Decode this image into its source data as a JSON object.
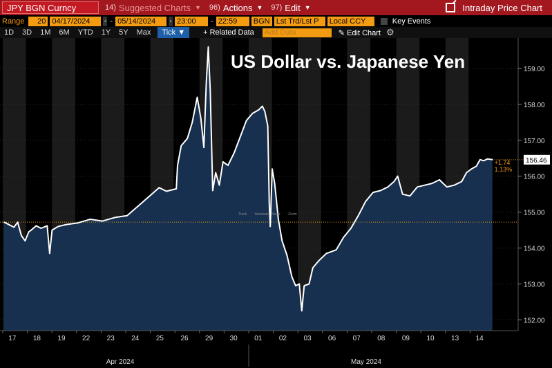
{
  "topbar": {
    "ticker": "JPY BGN Curncy",
    "suggested_num": "14)",
    "suggested": "Suggested Charts",
    "actions_num": "96)",
    "actions": "Actions",
    "edit_num": "97)",
    "edit": "Edit",
    "right_title": "Intraday Price Chart"
  },
  "controls": {
    "range_label": "Range",
    "range_value": "20",
    "start_date": "04/17/2024",
    "end_date": "05/14/2024",
    "start_time": "23:00",
    "end_time": "22:59",
    "source": "BGN",
    "price_type": "Lst Trd/Lst P",
    "currency": "Local CCY",
    "key_events": "Key Events"
  },
  "zoombar": {
    "buttons": [
      "1D",
      "3D",
      "1M",
      "6M",
      "YTD",
      "1Y",
      "5Y",
      "Max"
    ],
    "tick": "Tick ▼",
    "related": "+ Related Data",
    "add_data_placeholder": "Add Data",
    "edit_chart": "Edit Chart"
  },
  "chart_data": {
    "type": "area",
    "title": "US Dollar vs. Japanese Yen",
    "y_ticks": [
      "159.00",
      "158.00",
      "157.00",
      "156.00",
      "155.00",
      "154.00",
      "153.00",
      "152.00"
    ],
    "ylim": [
      151.7,
      159.75
    ],
    "x_labels": [
      "17",
      "18",
      "19",
      "22",
      "23",
      "24",
      "25",
      "26",
      "29",
      "30",
      "01",
      "02",
      "03",
      "06",
      "07",
      "08",
      "09",
      "10",
      "13",
      "14"
    ],
    "month_labels": [
      "Apr 2024",
      "May 2024"
    ],
    "last_value": "156.46",
    "change": "+1.74",
    "change_pct": "1.13%",
    "reference_line": 154.72,
    "tool_labels": [
      "Track",
      "Annotate",
      "News",
      "Zoom"
    ],
    "colors": {
      "line": "#ffffff",
      "fill": "#17304f",
      "shade": "#1b1b1b",
      "accent": "#f39c12",
      "topbar": "#a3171f"
    },
    "series": [
      {
        "x": 0,
        "y": 154.72
      },
      {
        "x": 0.2,
        "y": 154.65
      },
      {
        "x": 0.4,
        "y": 154.58
      },
      {
        "x": 0.55,
        "y": 154.72
      },
      {
        "x": 0.7,
        "y": 154.35
      },
      {
        "x": 0.85,
        "y": 154.2
      },
      {
        "x": 1.0,
        "y": 154.45
      },
      {
        "x": 1.1,
        "y": 154.5
      },
      {
        "x": 1.3,
        "y": 154.62
      },
      {
        "x": 1.5,
        "y": 154.55
      },
      {
        "x": 1.75,
        "y": 154.62
      },
      {
        "x": 1.85,
        "y": 153.85
      },
      {
        "x": 1.95,
        "y": 154.5
      },
      {
        "x": 2.2,
        "y": 154.6
      },
      {
        "x": 2.5,
        "y": 154.65
      },
      {
        "x": 3.0,
        "y": 154.7
      },
      {
        "x": 3.5,
        "y": 154.8
      },
      {
        "x": 4.0,
        "y": 154.75
      },
      {
        "x": 4.5,
        "y": 154.85
      },
      {
        "x": 5.0,
        "y": 154.9
      },
      {
        "x": 5.5,
        "y": 155.2
      },
      {
        "x": 6.0,
        "y": 155.5
      },
      {
        "x": 6.3,
        "y": 155.68
      },
      {
        "x": 6.6,
        "y": 155.58
      },
      {
        "x": 7.0,
        "y": 155.65
      },
      {
        "x": 7.05,
        "y": 156.3
      },
      {
        "x": 7.2,
        "y": 156.85
      },
      {
        "x": 7.45,
        "y": 157.05
      },
      {
        "x": 7.65,
        "y": 157.5
      },
      {
        "x": 7.85,
        "y": 158.2
      },
      {
        "x": 8.0,
        "y": 157.6
      },
      {
        "x": 8.12,
        "y": 156.8
      },
      {
        "x": 8.22,
        "y": 158.6
      },
      {
        "x": 8.3,
        "y": 159.6
      },
      {
        "x": 8.38,
        "y": 158.4
      },
      {
        "x": 8.48,
        "y": 155.6
      },
      {
        "x": 8.6,
        "y": 156.1
      },
      {
        "x": 8.75,
        "y": 155.75
      },
      {
        "x": 8.9,
        "y": 156.4
      },
      {
        "x": 9.1,
        "y": 156.3
      },
      {
        "x": 9.35,
        "y": 156.65
      },
      {
        "x": 9.6,
        "y": 157.1
      },
      {
        "x": 9.85,
        "y": 157.55
      },
      {
        "x": 10.1,
        "y": 157.75
      },
      {
        "x": 10.35,
        "y": 157.85
      },
      {
        "x": 10.5,
        "y": 157.95
      },
      {
        "x": 10.6,
        "y": 157.8
      },
      {
        "x": 10.72,
        "y": 157.4
      },
      {
        "x": 10.78,
        "y": 155.2
      },
      {
        "x": 10.82,
        "y": 154.6
      },
      {
        "x": 10.9,
        "y": 156.2
      },
      {
        "x": 11.0,
        "y": 155.8
      },
      {
        "x": 11.15,
        "y": 154.8
      },
      {
        "x": 11.3,
        "y": 154.2
      },
      {
        "x": 11.5,
        "y": 153.8
      },
      {
        "x": 11.7,
        "y": 153.2
      },
      {
        "x": 11.85,
        "y": 152.95
      },
      {
        "x": 12.0,
        "y": 153.0
      },
      {
        "x": 12.1,
        "y": 152.25
      },
      {
        "x": 12.2,
        "y": 152.95
      },
      {
        "x": 12.4,
        "y": 153.0
      },
      {
        "x": 12.55,
        "y": 153.45
      },
      {
        "x": 12.8,
        "y": 153.65
      },
      {
        "x": 13.1,
        "y": 153.85
      },
      {
        "x": 13.5,
        "y": 153.95
      },
      {
        "x": 13.8,
        "y": 154.3
      },
      {
        "x": 14.1,
        "y": 154.55
      },
      {
        "x": 14.4,
        "y": 154.9
      },
      {
        "x": 14.7,
        "y": 155.3
      },
      {
        "x": 15.0,
        "y": 155.55
      },
      {
        "x": 15.3,
        "y": 155.6
      },
      {
        "x": 15.6,
        "y": 155.7
      },
      {
        "x": 15.85,
        "y": 155.85
      },
      {
        "x": 16.0,
        "y": 156.0
      },
      {
        "x": 16.2,
        "y": 155.5
      },
      {
        "x": 16.5,
        "y": 155.45
      },
      {
        "x": 16.8,
        "y": 155.7
      },
      {
        "x": 17.1,
        "y": 155.75
      },
      {
        "x": 17.4,
        "y": 155.8
      },
      {
        "x": 17.7,
        "y": 155.9
      },
      {
        "x": 18.0,
        "y": 155.7
      },
      {
        "x": 18.3,
        "y": 155.75
      },
      {
        "x": 18.6,
        "y": 155.85
      },
      {
        "x": 18.8,
        "y": 156.1
      },
      {
        "x": 19.0,
        "y": 156.2
      },
      {
        "x": 19.2,
        "y": 156.28
      },
      {
        "x": 19.35,
        "y": 156.46
      },
      {
        "x": 19.5,
        "y": 156.43
      },
      {
        "x": 19.65,
        "y": 156.48
      },
      {
        "x": 19.85,
        "y": 156.46
      }
    ],
    "day_boundaries": [
      0,
      1,
      2,
      3,
      4,
      5,
      6,
      7,
      8,
      9,
      10,
      11,
      12,
      13,
      14,
      15,
      16,
      17,
      18,
      19,
      20
    ]
  }
}
